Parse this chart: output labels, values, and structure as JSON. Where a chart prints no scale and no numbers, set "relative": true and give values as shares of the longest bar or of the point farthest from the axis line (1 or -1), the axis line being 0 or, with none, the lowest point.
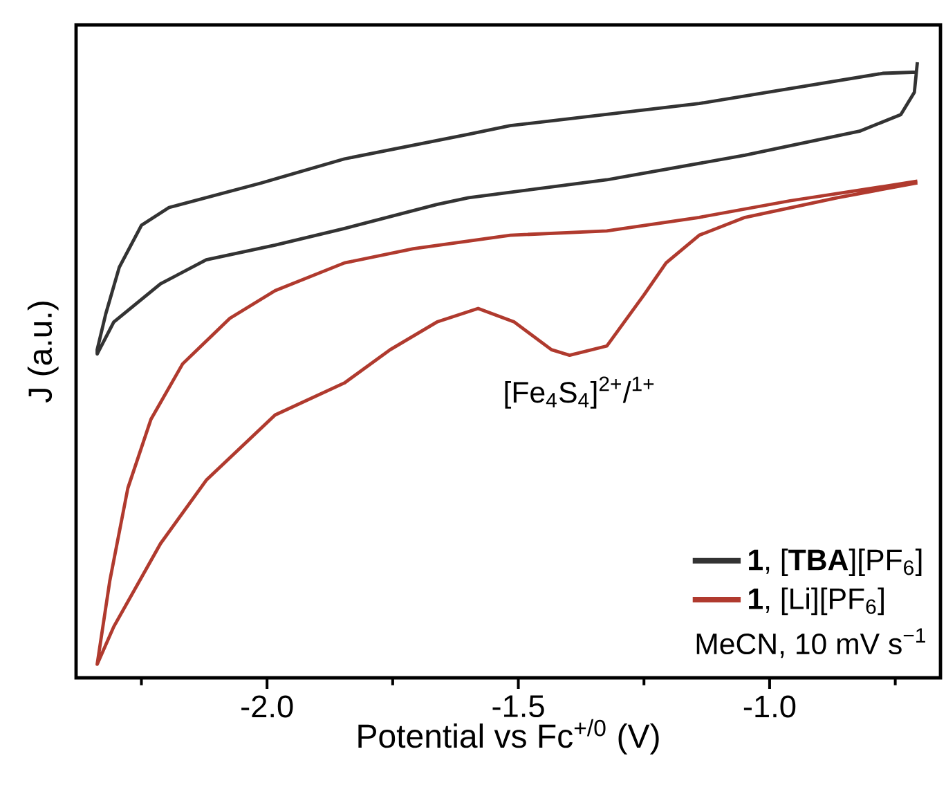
{
  "chart_data": {
    "type": "line",
    "relative": true,
    "xlabel": "Potential vs Fc$^{+/0}$ (V)",
    "ylabel": "J (a.u.)",
    "xlim": [
      -2.38,
      -0.66
    ],
    "xticks": [
      {
        "value": -2.25,
        "label": null
      },
      {
        "value": -2.0,
        "label": "-2.0"
      },
      {
        "value": -1.75,
        "label": null
      },
      {
        "value": -1.5,
        "label": "-1.5"
      },
      {
        "value": -1.25,
        "label": null
      },
      {
        "value": -1.0,
        "label": "-1.0"
      },
      {
        "value": -0.75,
        "label": null
      }
    ],
    "legend": "bottom right",
    "series": [
      {
        "name": "**1**, [**TBA**][PF$_{6}$]",
        "color": "#333333",
        "x": [
          -0.706,
          -0.775,
          -1.14,
          -1.516,
          -1.599,
          -1.846,
          -2.011,
          -2.195,
          -2.25,
          -2.294,
          -2.321,
          -2.338,
          -2.338,
          -2.305,
          -2.212,
          -2.121,
          -1.984,
          -1.846,
          -1.662,
          -1.599,
          -1.324,
          -1.049,
          -0.821,
          -0.739,
          -0.712,
          -0.706
        ],
        "values": [
          0.984,
          0.982,
          0.933,
          0.897,
          0.883,
          0.843,
          0.804,
          0.764,
          0.735,
          0.667,
          0.591,
          0.533,
          0.526,
          0.578,
          0.64,
          0.679,
          0.703,
          0.73,
          0.769,
          0.78,
          0.809,
          0.849,
          0.888,
          0.915,
          0.951,
          1.0
        ]
      },
      {
        "name": "**1**, [Li][PF$_{6}$]",
        "color": "#b03a2e",
        "x": [
          -0.706,
          -0.775,
          -0.959,
          -1.14,
          -1.324,
          -1.516,
          -1.709,
          -1.846,
          -1.984,
          -2.074,
          -2.168,
          -2.231,
          -2.277,
          -2.313,
          -2.338,
          -2.305,
          -2.212,
          -2.121,
          -1.984,
          -1.846,
          -1.755,
          -1.662,
          -1.58,
          -1.508,
          -1.434,
          -1.398,
          -1.324,
          -1.25,
          -1.206,
          -1.14,
          -1.049,
          -0.865,
          -0.706
        ],
        "values": [
          0.807,
          0.798,
          0.775,
          0.748,
          0.726,
          0.719,
          0.697,
          0.674,
          0.629,
          0.584,
          0.51,
          0.42,
          0.308,
          0.157,
          0.022,
          0.083,
          0.218,
          0.321,
          0.427,
          0.479,
          0.533,
          0.578,
          0.6,
          0.578,
          0.533,
          0.524,
          0.539,
          0.622,
          0.674,
          0.719,
          0.748,
          0.78,
          0.804
        ]
      }
    ],
    "annotations": [
      {
        "text": "[Fe$_{4}$S$_{4}$]$^{2+}$/$^{1+}$",
        "x": -1.43,
        "y": 0.53
      },
      "MeCN, 10 mV s$^{−1}$"
    ]
  }
}
